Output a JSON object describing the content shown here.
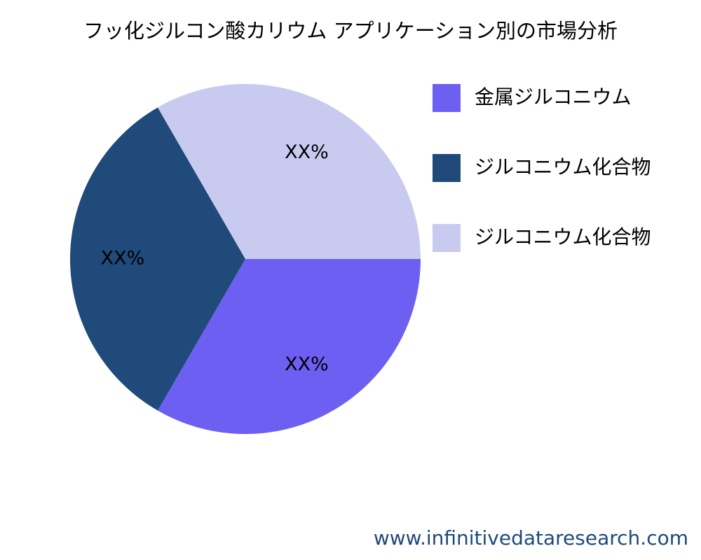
{
  "chart_data": {
    "type": "pie",
    "title": "フッ化ジルコン酸カリウム アプリケーション別の市場分析",
    "categories": [
      "金属ジルコニウム",
      "ジルコニウム化合物",
      "ジルコニウム化合物"
    ],
    "values": [
      33.3,
      33.3,
      33.3
    ],
    "value_labels": [
      "XX%",
      "XX%",
      "XX%"
    ],
    "colors": [
      "#6c5ff2",
      "#1f4a7a",
      "#c9caf0"
    ],
    "source": "www.infinitivedataresearch.com"
  }
}
